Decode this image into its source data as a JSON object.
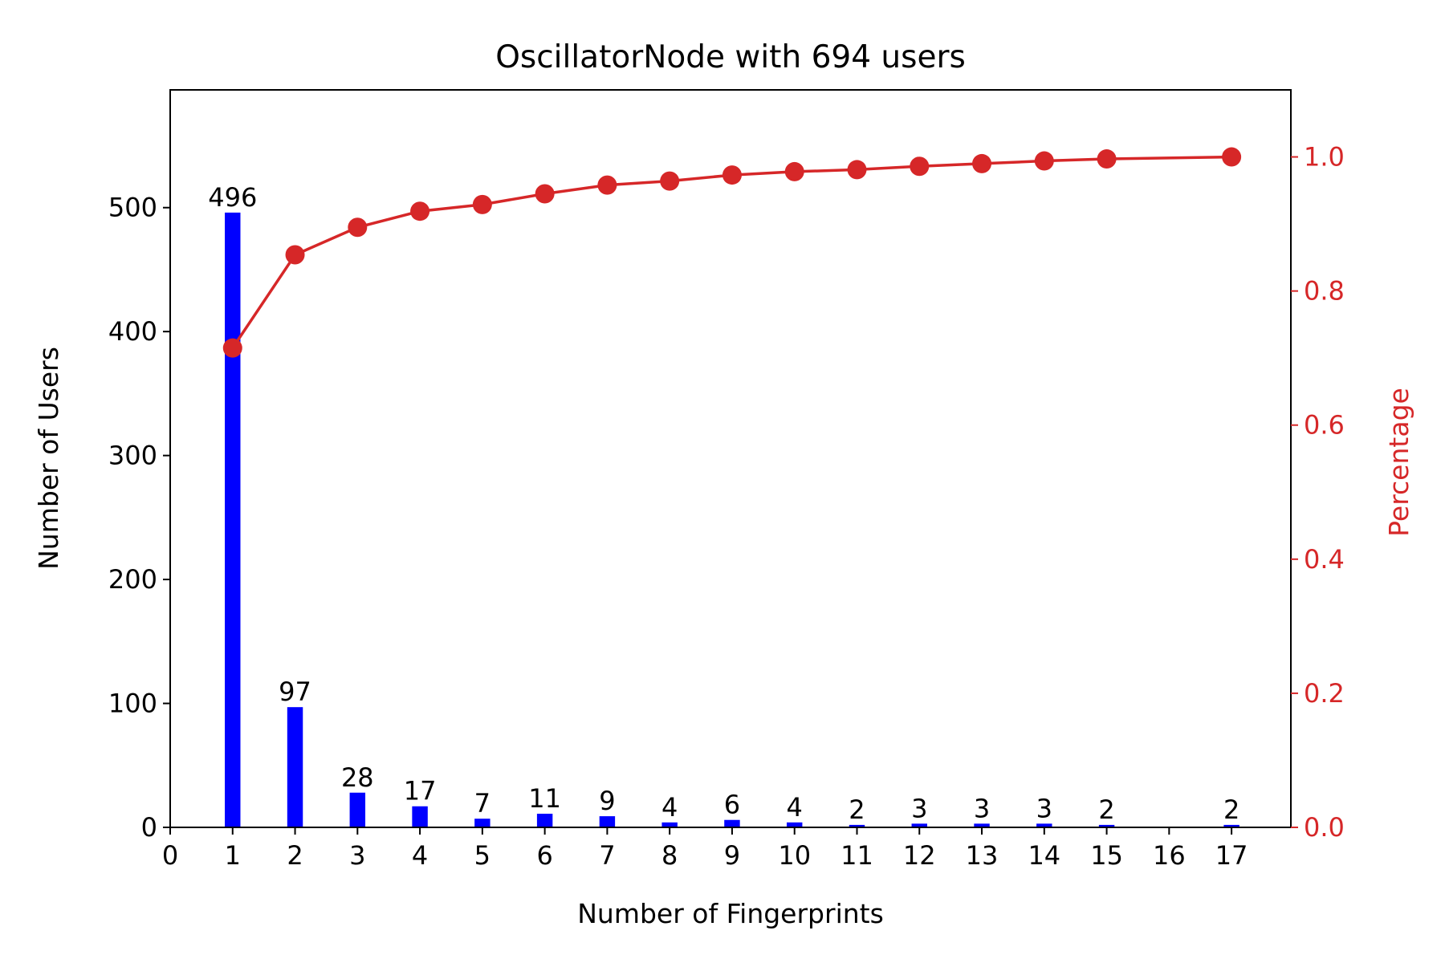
{
  "chart_data": {
    "type": "bar",
    "title": "OscillatorNode with 694 users",
    "xlabel": "Number of Fingerprints",
    "ylabel": "Number of Users",
    "y2label": "Percentage",
    "x_ticks": [
      "0",
      "1",
      "2",
      "3",
      "4",
      "5",
      "6",
      "7",
      "8",
      "9",
      "10",
      "11",
      "12",
      "13",
      "14",
      "15",
      "16",
      "17"
    ],
    "y_ticks": [
      "0",
      "100",
      "200",
      "300",
      "400",
      "500"
    ],
    "y2_ticks": [
      "0.0",
      "0.2",
      "0.4",
      "0.6",
      "0.8",
      "1.0"
    ],
    "xlim": [
      0,
      17.95
    ],
    "ylim": [
      0,
      595
    ],
    "y2lim": [
      0,
      1.1
    ],
    "grid": false,
    "series": [
      {
        "type": "bar",
        "axis": "left",
        "color": "#0000ff",
        "x": [
          1,
          2,
          3,
          4,
          5,
          6,
          7,
          8,
          9,
          10,
          11,
          12,
          13,
          14,
          15,
          17
        ],
        "values": [
          496,
          97,
          28,
          17,
          7,
          11,
          9,
          4,
          6,
          4,
          2,
          3,
          3,
          3,
          2,
          2
        ],
        "labels": [
          "496",
          "97",
          "28",
          "17",
          "7",
          "11",
          "9",
          "4",
          "6",
          "4",
          "2",
          "3",
          "3",
          "3",
          "2",
          "2"
        ]
      },
      {
        "type": "line",
        "axis": "right",
        "color": "#d62728",
        "marker": "circle",
        "x": [
          1,
          2,
          3,
          4,
          5,
          6,
          7,
          8,
          9,
          10,
          11,
          12,
          13,
          14,
          15,
          17
        ],
        "values": [
          0.715,
          0.854,
          0.895,
          0.919,
          0.929,
          0.945,
          0.958,
          0.964,
          0.973,
          0.978,
          0.981,
          0.986,
          0.99,
          0.994,
          0.997,
          1.0
        ]
      }
    ],
    "colors": {
      "axis": "#000000",
      "secondary_axis": "#d62728",
      "bar": "#0000ff",
      "line": "#d62728"
    }
  }
}
